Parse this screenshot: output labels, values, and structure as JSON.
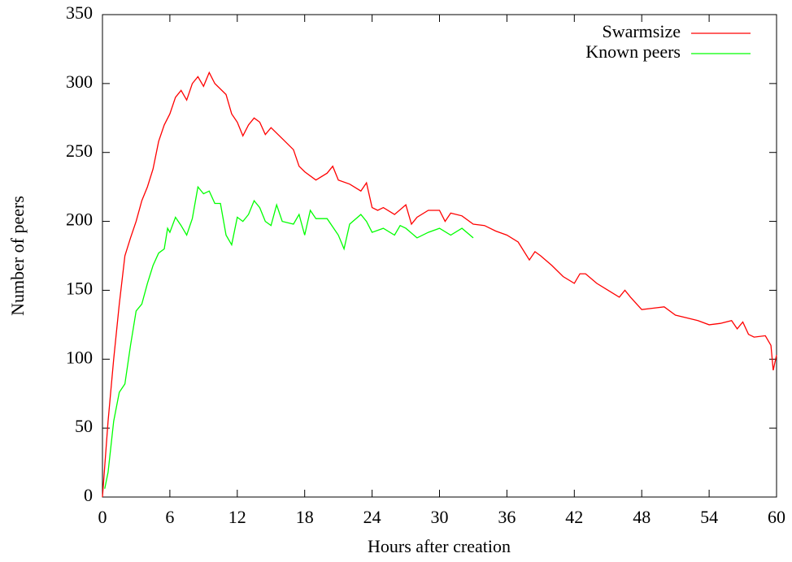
{
  "chart_data": {
    "type": "line",
    "xlabel": "Hours after creation",
    "ylabel": "Number of peers",
    "xlim": [
      0,
      60
    ],
    "ylim": [
      0,
      350
    ],
    "xticks": [
      0,
      6,
      12,
      18,
      24,
      30,
      36,
      42,
      48,
      54,
      60
    ],
    "yticks": [
      0,
      50,
      100,
      150,
      200,
      250,
      300,
      350
    ],
    "legend": "top-right",
    "series": [
      {
        "name": "Swarmsize",
        "color": "#ff0000",
        "x": [
          0,
          0.5,
          1,
          1.5,
          2,
          2.5,
          3,
          3.5,
          4,
          4.5,
          5,
          5.5,
          6,
          6.5,
          7,
          7.5,
          8,
          8.5,
          9,
          9.5,
          10,
          11,
          11.5,
          12,
          12.5,
          13,
          13.5,
          14,
          14.5,
          15,
          16,
          17,
          17.5,
          18,
          19,
          20,
          20.5,
          21,
          22,
          23,
          23.5,
          24,
          24.5,
          25,
          26,
          27,
          27.5,
          28,
          29,
          30,
          30.5,
          31,
          32,
          33,
          34,
          35,
          36,
          37,
          38,
          38.5,
          39,
          40,
          41,
          42,
          42.5,
          43,
          44,
          45,
          46,
          46.5,
          47,
          48,
          49,
          50,
          51,
          52,
          53,
          54,
          55,
          56,
          56.5,
          57,
          57.5,
          58,
          59,
          59.5,
          59.7,
          60
        ],
        "values": [
          0,
          55,
          100,
          140,
          175,
          188,
          200,
          215,
          225,
          238,
          258,
          270,
          278,
          290,
          295,
          288,
          300,
          305,
          298,
          308,
          300,
          292,
          278,
          272,
          262,
          270,
          275,
          272,
          263,
          268,
          260,
          252,
          240,
          236,
          230,
          235,
          240,
          230,
          227,
          222,
          228,
          210,
          208,
          210,
          205,
          212,
          198,
          203,
          208,
          208,
          200,
          206,
          204,
          198,
          197,
          193,
          190,
          185,
          172,
          178,
          175,
          168,
          160,
          155,
          162,
          162,
          155,
          150,
          145,
          150,
          145,
          136,
          137,
          138,
          132,
          130,
          128,
          125,
          126,
          128,
          122,
          127,
          118,
          116,
          117,
          110,
          92,
          103
        ]
      },
      {
        "name": "Known peers",
        "color": "#00ff00",
        "x": [
          0.2,
          0.5,
          1,
          1.5,
          2,
          2.5,
          3,
          3.5,
          4,
          4.5,
          5,
          5.5,
          5.8,
          6,
          6.5,
          7,
          7.5,
          8,
          8.5,
          9,
          9.5,
          10,
          10.5,
          11,
          11.5,
          12,
          12.5,
          13,
          13.5,
          14,
          14.5,
          15,
          15.5,
          16,
          17,
          17.5,
          18,
          18.5,
          19,
          20,
          21,
          21.5,
          22,
          23,
          23.5,
          24,
          25,
          26,
          26.5,
          27,
          28,
          29,
          30,
          31,
          32,
          33
        ],
        "values": [
          6,
          18,
          55,
          76,
          82,
          110,
          135,
          140,
          155,
          168,
          177,
          180,
          195,
          192,
          203,
          197,
          190,
          202,
          225,
          220,
          222,
          213,
          213,
          190,
          183,
          203,
          200,
          205,
          215,
          210,
          200,
          197,
          212,
          200,
          198,
          205,
          190,
          208,
          202,
          202,
          190,
          180,
          198,
          205,
          200,
          192,
          195,
          190,
          197,
          195,
          188,
          192,
          195,
          190,
          195,
          188
        ]
      }
    ]
  }
}
